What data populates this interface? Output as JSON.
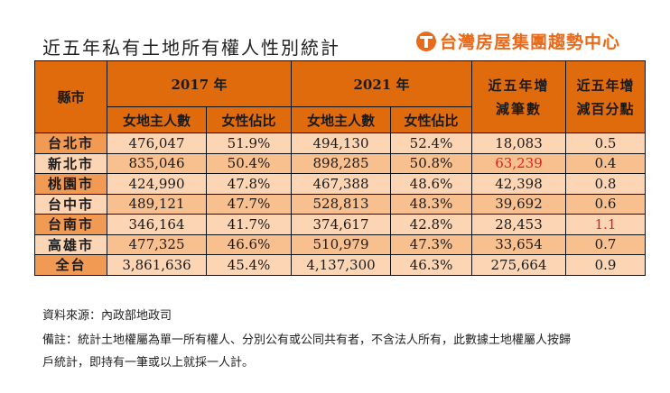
{
  "title": "近五年私有土地所有權人性別統計",
  "brand": "台灣房屋集團趨勢中心",
  "colors": {
    "header": "#e06b0c",
    "city_cell": "#f19a54",
    "row_light": "#fcd5b4",
    "row_dark": "#f8bf8f",
    "brand": "#e86a1a",
    "highlight": "#e02020"
  },
  "table": {
    "header": {
      "city": "縣市",
      "year1": "2017 年",
      "year2": "2021 年",
      "diff_count": "近五年增減筆數",
      "diff_pct": "近五年增減百分點",
      "female_owners": "女地主人數",
      "female_ratio": "女性佔比"
    },
    "rows": [
      {
        "city": "台北市",
        "n2017": "476,047",
        "p2017": "51.9%",
        "n2021": "494,130",
        "p2021": "52.4%",
        "diff": "18,083",
        "diff_pct": "0.5"
      },
      {
        "city": "新北市",
        "n2017": "835,046",
        "p2017": "50.4%",
        "n2021": "898,285",
        "p2021": "50.8%",
        "diff": "63,239",
        "diff_pct": "0.4"
      },
      {
        "city": "桃園市",
        "n2017": "424,990",
        "p2017": "47.8%",
        "n2021": "467,388",
        "p2021": "48.6%",
        "diff": "42,398",
        "diff_pct": "0.8"
      },
      {
        "city": "台中市",
        "n2017": "489,121",
        "p2017": "47.7%",
        "n2021": "528,813",
        "p2021": "48.3%",
        "diff": "39,692",
        "diff_pct": "0.6"
      },
      {
        "city": "台南市",
        "n2017": "346,164",
        "p2017": "41.7%",
        "n2021": "374,617",
        "p2021": "42.8%",
        "diff": "28,453",
        "diff_pct": "1.1"
      },
      {
        "city": "高雄市",
        "n2017": "477,325",
        "p2017": "46.6%",
        "n2021": "510,979",
        "p2021": "47.3%",
        "diff": "33,654",
        "diff_pct": "0.7"
      },
      {
        "city": "全台",
        "n2017": "3,861,636",
        "p2017": "45.4%",
        "n2021": "4,137,300",
        "p2021": "46.3%",
        "diff": "275,664",
        "diff_pct": "0.9"
      }
    ]
  },
  "source": "資料來源：內政部地政司",
  "note_line1": "備註：統計土地權屬為單一所有權人、分別公有或公同共有者，不含法人所有，此數據土地權屬人按歸",
  "note_line2": "戶統計，即持有一筆或以上就採一人計。"
}
